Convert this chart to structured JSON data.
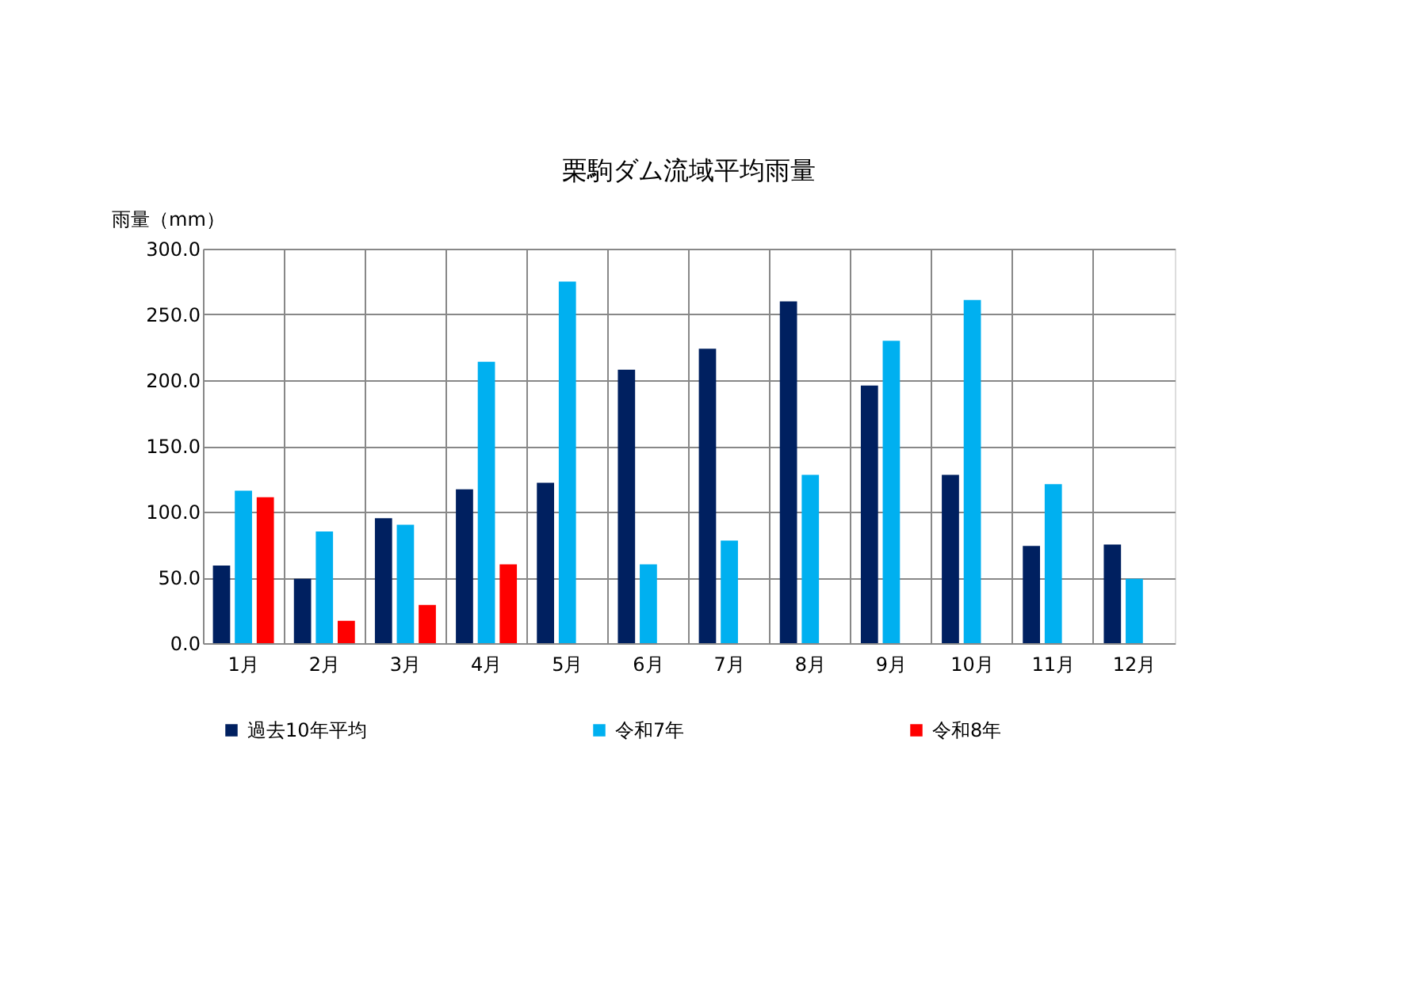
{
  "chart_data": {
    "type": "bar",
    "title": "栗駒ダム流域平均雨量",
    "ylabel": "雨量（mm）",
    "categories": [
      "1月",
      "2月",
      "3月",
      "4月",
      "5月",
      "6月",
      "7月",
      "8月",
      "9月",
      "10月",
      "11月",
      "12月"
    ],
    "series": [
      {
        "name": "過去10年平均",
        "color": "#002060",
        "values": [
          59,
          49,
          95,
          117,
          122,
          208,
          224,
          260,
          196,
          128,
          74,
          75
        ]
      },
      {
        "name": "令和7年",
        "color": "#00b0f0",
        "values": [
          116,
          85,
          90,
          214,
          275,
          60,
          78,
          128,
          230,
          261,
          121,
          49
        ]
      },
      {
        "name": "令和8年",
        "color": "#ff0000",
        "values": [
          111,
          17,
          29,
          60,
          null,
          null,
          null,
          null,
          null,
          null,
          null,
          null
        ]
      }
    ],
    "ylim": [
      0,
      300
    ],
    "yticks": [
      {
        "value": 0,
        "label": "0.0"
      },
      {
        "value": 50,
        "label": "50.0"
      },
      {
        "value": 100,
        "label": "100.0"
      },
      {
        "value": 150,
        "label": "150.0"
      },
      {
        "value": 200,
        "label": "200.0"
      },
      {
        "value": 250,
        "label": "250.0"
      },
      {
        "value": 300,
        "label": "300.0"
      }
    ],
    "grid": true,
    "legend": "bottom"
  }
}
